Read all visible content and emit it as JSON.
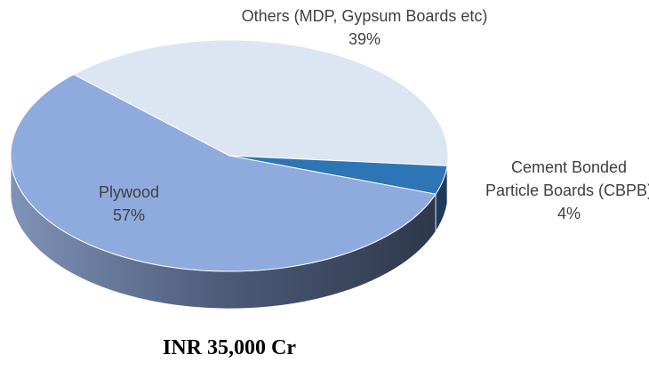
{
  "chart_data": {
    "type": "pie",
    "caption": "INR 35,000 Cr",
    "categories": [
      "Others (MDP, Gypsum Boards etc)",
      "Cement Bonded Particle Boards (CBPB)",
      "Plywood"
    ],
    "values": [
      39,
      4,
      57
    ],
    "value_labels": [
      "39%",
      "4%",
      "57%"
    ],
    "colors": [
      "#dce6f2",
      "#2e75b6",
      "#8faadc"
    ]
  }
}
